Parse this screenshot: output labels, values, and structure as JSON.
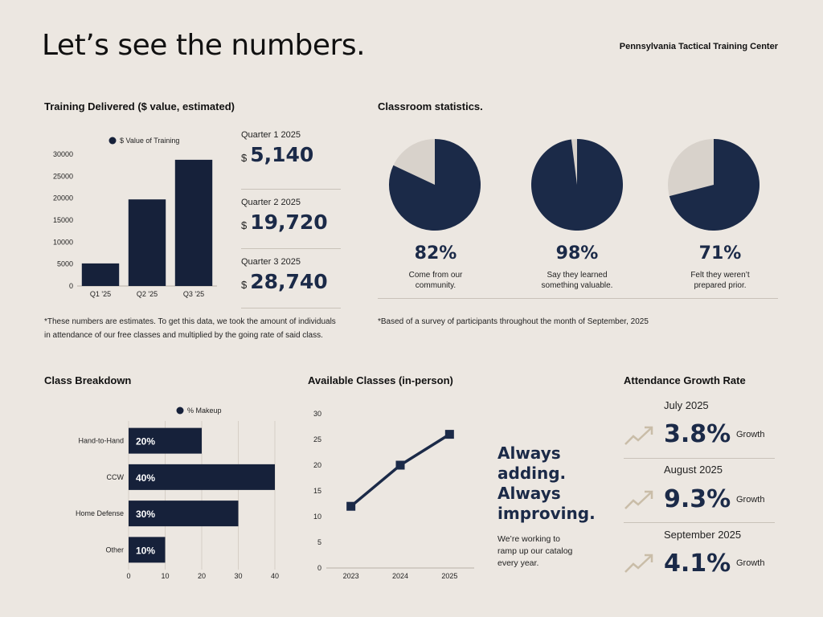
{
  "header": {
    "title": "Let’s see the numbers.",
    "org": "Pennsylvania Tactical Training Center"
  },
  "training": {
    "section_title": "Training Delivered ($ value, estimated)",
    "stats": [
      {
        "label": "Quarter 1 2025",
        "currency": "$",
        "value": "5,140"
      },
      {
        "label": "Quarter 2 2025",
        "currency": "$",
        "value": "19,720"
      },
      {
        "label": "Quarter 3 2025",
        "currency": "$",
        "value": "28,740"
      }
    ],
    "footnote": "*These numbers are estimates. To get this data, we took the amount of individuals in attendance of our free classes and multiplied by the going rate of said class."
  },
  "classroom": {
    "section_title": "Classroom statistics.",
    "pies": [
      {
        "pct": "82%",
        "caption_1": "Come from our",
        "caption_2": "community."
      },
      {
        "pct": "98%",
        "caption_1": "Say they learned",
        "caption_2": "something valuable."
      },
      {
        "pct": "71%",
        "caption_1": "Felt they weren’t",
        "caption_2": "prepared prior."
      }
    ],
    "footnote": "*Based of a survey of participants throughout the month of September, 2025"
  },
  "breakdown": {
    "section_title": "Class Breakdown"
  },
  "available": {
    "section_title": "Available Classes (in-person)",
    "slogan_lines": [
      "Always",
      "adding.",
      "Always",
      "improving."
    ],
    "sub_lines": [
      "We’re working to",
      "ramp up our catalog",
      "every year."
    ]
  },
  "growth": {
    "section_title": "Attendance Growth Rate",
    "items": [
      {
        "month": "July 2025",
        "value": "3.8%",
        "word": "Growth"
      },
      {
        "month": "August 2025",
        "value": "9.3%",
        "word": "Growth"
      },
      {
        "month": "September 2025",
        "value": "4.1%",
        "word": "Growth"
      }
    ]
  },
  "colors": {
    "navy": "#1b2a48",
    "dark": "#16213a",
    "beige": "#d8d2cb",
    "tan": "#c9bda8",
    "bg": "#ece7e1"
  },
  "chart_data": [
    {
      "id": "training",
      "type": "bar",
      "title": "Training Delivered ($ value, estimated)",
      "legend": "$ Value of Training",
      "categories": [
        "Q1 '25",
        "Q2 '25",
        "Q3 '25"
      ],
      "values": [
        5140,
        19720,
        28740
      ],
      "ylim": [
        0,
        30000
      ],
      "yticks": [
        "0",
        "5000",
        "10000",
        "15000",
        "20000",
        "25000",
        "30000"
      ],
      "ytick_values": [
        0,
        5000,
        10000,
        15000,
        20000,
        25000,
        30000
      ]
    },
    {
      "id": "pies",
      "type": "pie",
      "title": "Classroom statistics.",
      "values": [
        82,
        98,
        71
      ]
    },
    {
      "id": "breakdown",
      "type": "bar",
      "orientation": "horizontal",
      "title": "Class Breakdown",
      "legend": "% Makeup",
      "categories": [
        "Hand-to-Hand",
        "CCW",
        "Home Defense",
        "Other"
      ],
      "values": [
        20,
        40,
        30,
        10
      ],
      "value_labels": [
        "20%",
        "40%",
        "30%",
        "10%"
      ],
      "xlim": [
        0,
        40
      ],
      "xticks": [
        "0",
        "10",
        "20",
        "30",
        "40"
      ],
      "xtick_values": [
        0,
        10,
        20,
        30,
        40
      ]
    },
    {
      "id": "available",
      "type": "line",
      "title": "Available Classes (in-person)",
      "x": [
        "2023",
        "2024",
        "2025"
      ],
      "values": [
        12,
        20,
        26
      ],
      "ylim": [
        0,
        30
      ],
      "yticks": [
        "0",
        "5",
        "10",
        "15",
        "20",
        "25",
        "30"
      ],
      "ytick_values": [
        0,
        5,
        10,
        15,
        20,
        25,
        30
      ]
    }
  ]
}
